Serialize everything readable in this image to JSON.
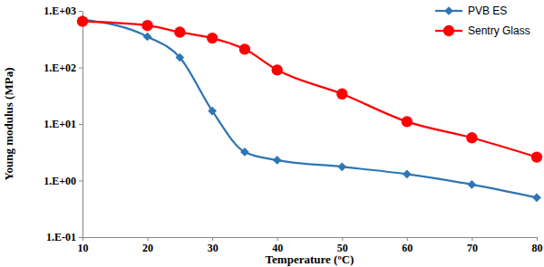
{
  "chart_data": {
    "type": "line",
    "x_label": "Temperature (ºC)",
    "y_label": "Young modulus (MPa)",
    "x": [
      10,
      20,
      25,
      30,
      35,
      40,
      50,
      60,
      70,
      80
    ],
    "series": [
      {
        "name": "PVB ES",
        "color": "#2e75b6",
        "marker": "diamond",
        "line_style": "solid",
        "values": [
          700,
          350,
          150,
          17,
          3.2,
          2.3,
          1.75,
          1.3,
          0.85,
          0.5
        ]
      },
      {
        "name": "Sentry Glass",
        "color": "#ff0000",
        "marker": "circle",
        "line_style": "solid",
        "values": [
          650,
          550,
          420,
          330,
          210,
          90,
          34,
          11,
          5.7,
          2.6
        ]
      }
    ],
    "xlim": [
      10,
      80
    ],
    "xticks": [
      10,
      20,
      30,
      40,
      50,
      60,
      70,
      80
    ],
    "ylim": [
      0.1,
      1000
    ],
    "yticks": [
      {
        "value": 0.1,
        "label": "1.E-01"
      },
      {
        "value": 1,
        "label": "1.E+00"
      },
      {
        "value": 10,
        "label": "1.E+01"
      },
      {
        "value": 100,
        "label": "1.E+02"
      },
      {
        "value": 1000,
        "label": "1.E+03"
      }
    ],
    "log": "y",
    "grid": false,
    "legend": "top-right"
  }
}
